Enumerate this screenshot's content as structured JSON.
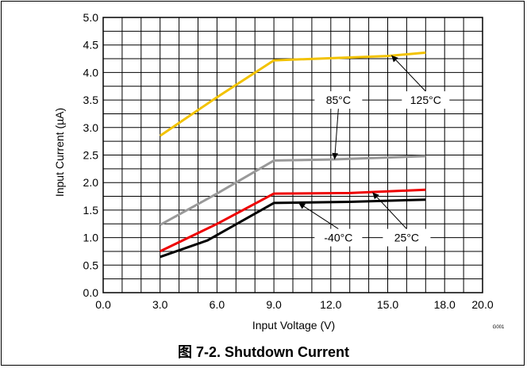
{
  "caption": "图 7-2. Shutdown Current",
  "chart_data": {
    "type": "line",
    "title": "",
    "xlabel": "Input Voltage (V)",
    "ylabel": "Input Current (µA)",
    "xlim": [
      0,
      20
    ],
    "ylim": [
      0,
      5
    ],
    "x_ticks": [
      0,
      3,
      6,
      9,
      12,
      15,
      18,
      20
    ],
    "x_tick_labels": [
      "0.0",
      "3.0",
      "6.0",
      "9.0",
      "12.0",
      "15.0",
      "18.0",
      "20.0"
    ],
    "y_ticks": [
      0,
      0.5,
      1,
      1.5,
      2,
      2.5,
      3,
      3.5,
      4,
      4.5,
      5
    ],
    "y_tick_labels": [
      "0.0",
      "0.5",
      "1.0",
      "1.5",
      "2.0",
      "2.5",
      "3.0",
      "3.5",
      "4.0",
      "4.5",
      "5.0"
    ],
    "grid": true,
    "legend": "none",
    "figure_code": "G001",
    "series": [
      {
        "name": "125°C",
        "color": "#f2c200",
        "x": [
          3,
          6,
          9,
          15,
          17
        ],
        "y": [
          2.85,
          3.55,
          4.22,
          4.3,
          4.36
        ]
      },
      {
        "name": "85°C",
        "color": "#999999",
        "x": [
          3,
          6,
          9,
          12,
          17
        ],
        "y": [
          1.23,
          1.8,
          2.4,
          2.42,
          2.48
        ]
      },
      {
        "name": "25°C",
        "color": "#ee0000",
        "x": [
          3,
          6,
          9,
          13,
          17
        ],
        "y": [
          0.75,
          1.25,
          1.8,
          1.81,
          1.87
        ]
      },
      {
        "name": "-40°C",
        "color": "#000000",
        "x": [
          3,
          5.5,
          9,
          13,
          17
        ],
        "y": [
          0.65,
          0.95,
          1.63,
          1.65,
          1.69
        ]
      }
    ],
    "annotations": [
      {
        "series": "125°C",
        "text": "125°C",
        "point": [
          15.2,
          4.31
        ],
        "label_at": [
          17,
          3.5
        ]
      },
      {
        "series": "85°C",
        "text": "85°C",
        "point": [
          12.2,
          2.42
        ],
        "label_at": [
          12.4,
          3.5
        ]
      },
      {
        "series": "-40°C",
        "text": "-40°C",
        "point": [
          10.3,
          1.63
        ],
        "label_at": [
          12.4,
          1.0
        ]
      },
      {
        "series": "25°C",
        "text": "25°C",
        "point": [
          14.2,
          1.82
        ],
        "label_at": [
          16.0,
          1.0
        ]
      }
    ]
  }
}
